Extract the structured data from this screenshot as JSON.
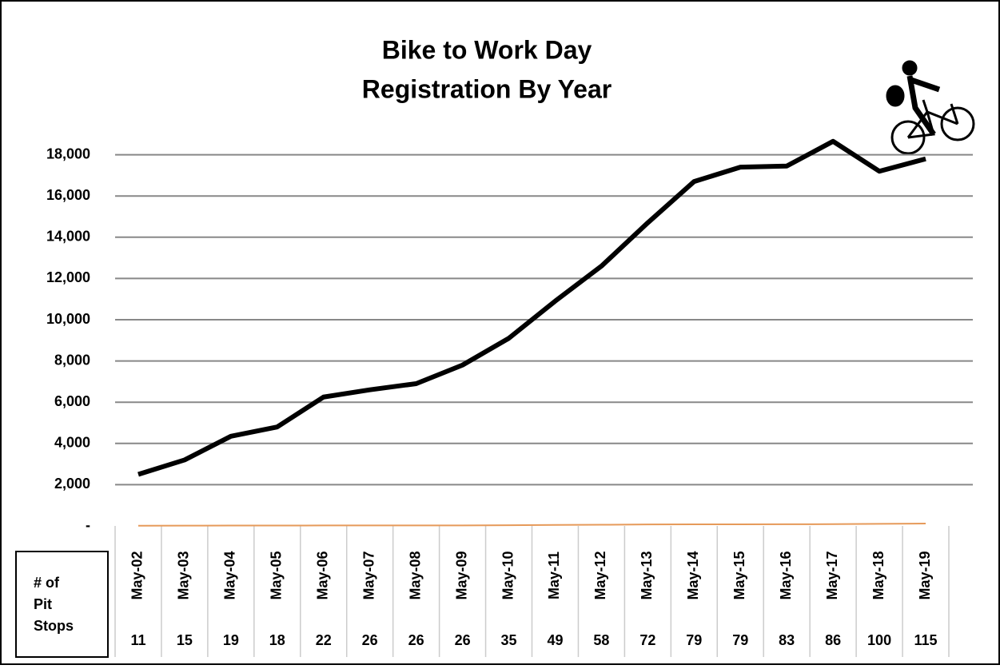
{
  "chart_data": {
    "type": "line",
    "title": "Bike to Work Day",
    "subtitle": "Registration By Year",
    "categories": [
      "May-02",
      "May-03",
      "May-04",
      "May-05",
      "May-06",
      "May-07",
      "May-08",
      "May-09",
      "May-10",
      "May-11",
      "May-12",
      "May-13",
      "May-14",
      "May-15",
      "May-16",
      "May-17",
      "May-18",
      "May-19"
    ],
    "series": [
      {
        "color": "#000000",
        "values": [
          2500,
          3200,
          4350,
          4800,
          6250,
          6600,
          6900,
          7800,
          9100,
          10900,
          12600,
          14700,
          16700,
          17400,
          17450,
          18650,
          17200,
          17800
        ]
      },
      {
        "name": "# of Pit Stops",
        "color": "#e69a5a",
        "values": [
          11,
          15,
          19,
          18,
          22,
          26,
          26,
          26,
          35,
          49,
          58,
          72,
          79,
          79,
          83,
          86,
          100,
          115
        ]
      }
    ],
    "ylim": [
      0,
      20000
    ],
    "yticks": [
      {
        "value": 0,
        "label": "-"
      },
      {
        "value": 2000,
        "label": "2,000"
      },
      {
        "value": 4000,
        "label": "4,000"
      },
      {
        "value": 6000,
        "label": "6,000"
      },
      {
        "value": 8000,
        "label": "8,000"
      },
      {
        "value": 10000,
        "label": "10,000"
      },
      {
        "value": 12000,
        "label": "12,000"
      },
      {
        "value": 14000,
        "label": "14,000"
      },
      {
        "value": 16000,
        "label": "16,000"
      },
      {
        "value": 18000,
        "label": "18,000"
      }
    ],
    "grid": true
  }
}
